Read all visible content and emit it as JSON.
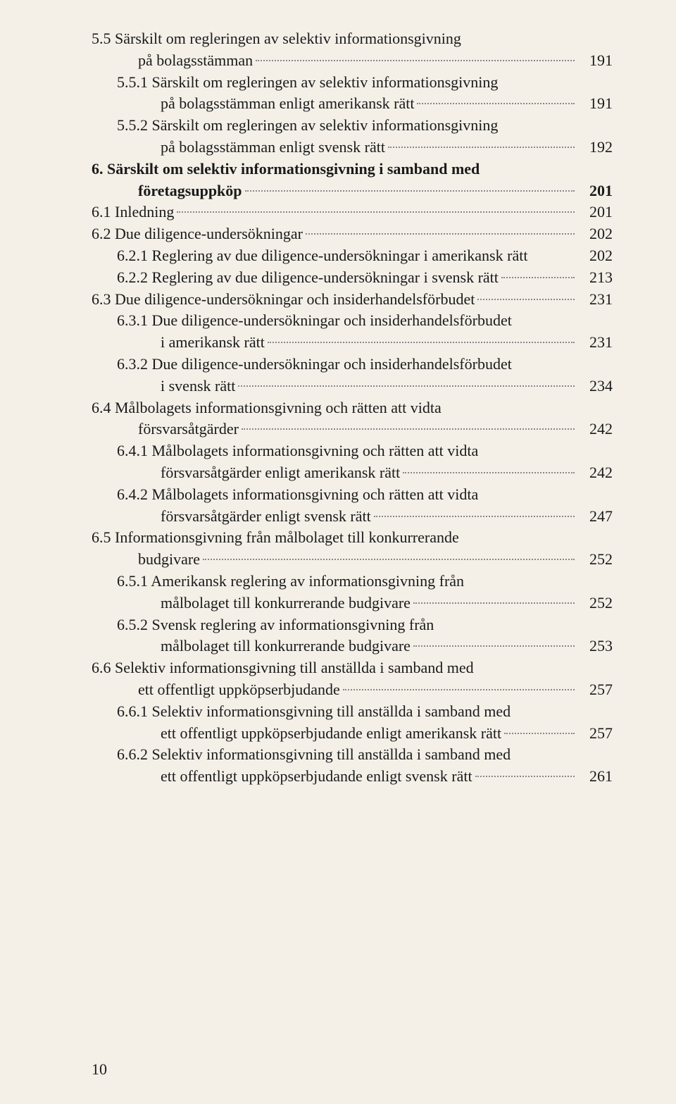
{
  "pageNumber": "10",
  "entries": [
    {
      "lines": [
        {
          "text": "5.5 Särskilt om regleringen av selektiv informationsgivning",
          "indent": "lvl-2",
          "hasLeader": false
        },
        {
          "text": "på bolagsstämman",
          "indent": "continuation",
          "hasLeader": true,
          "page": "191"
        }
      ]
    },
    {
      "lines": [
        {
          "text": "5.5.1 Särskilt om regleringen av selektiv informationsgivning",
          "indent": "lvl-3",
          "hasLeader": false
        },
        {
          "text": "på bolagsstämman enligt amerikansk rätt",
          "indent": "continuation-3",
          "hasLeader": true,
          "page": "191"
        }
      ]
    },
    {
      "lines": [
        {
          "text": "5.5.2 Särskilt om regleringen av selektiv informationsgivning",
          "indent": "lvl-3",
          "hasLeader": false
        },
        {
          "text": "på bolagsstämman enligt svensk rätt",
          "indent": "continuation-3",
          "hasLeader": true,
          "page": "192"
        }
      ]
    },
    {
      "lines": [
        {
          "text": "6. Särskilt om selektiv informationsgivning i samband med",
          "indent": "lvl-chapter",
          "chapter": true,
          "hasLeader": false
        },
        {
          "text": "företagsuppköp",
          "indent": "continuation",
          "chapter": true,
          "hasLeader": true,
          "page": "201"
        }
      ]
    },
    {
      "lines": [
        {
          "text": "6.1 Inledning",
          "indent": "lvl-2",
          "hasLeader": true,
          "page": "201"
        }
      ]
    },
    {
      "lines": [
        {
          "text": "6.2 Due diligence-undersökningar",
          "indent": "lvl-2",
          "hasLeader": true,
          "page": "202"
        }
      ]
    },
    {
      "lines": [
        {
          "text": "6.2.1 Reglering av due diligence-undersökningar i amerikansk rätt",
          "indent": "lvl-3",
          "hasLeader": false,
          "page": "202",
          "tight": true
        }
      ]
    },
    {
      "lines": [
        {
          "text": "6.2.2 Reglering av due diligence-undersökningar i svensk rätt",
          "indent": "lvl-3",
          "hasLeader": true,
          "page": "213"
        }
      ]
    },
    {
      "lines": [
        {
          "text": "6.3 Due diligence-undersökningar och insiderhandelsförbudet",
          "indent": "lvl-2",
          "hasLeader": true,
          "page": "231"
        }
      ]
    },
    {
      "lines": [
        {
          "text": "6.3.1 Due diligence-undersökningar och insiderhandelsförbudet",
          "indent": "lvl-3",
          "hasLeader": false
        },
        {
          "text": "i amerikansk rätt",
          "indent": "continuation-3",
          "hasLeader": true,
          "page": "231"
        }
      ]
    },
    {
      "lines": [
        {
          "text": "6.3.2 Due diligence-undersökningar och insiderhandelsförbudet",
          "indent": "lvl-3",
          "hasLeader": false
        },
        {
          "text": "i svensk rätt",
          "indent": "continuation-3",
          "hasLeader": true,
          "page": "234"
        }
      ]
    },
    {
      "lines": [
        {
          "text": "6.4 Målbolagets informationsgivning och rätten att vidta",
          "indent": "lvl-2",
          "hasLeader": false
        },
        {
          "text": "försvarsåtgärder",
          "indent": "continuation",
          "hasLeader": true,
          "page": "242"
        }
      ]
    },
    {
      "lines": [
        {
          "text": "6.4.1 Målbolagets informationsgivning och rätten att vidta",
          "indent": "lvl-3",
          "hasLeader": false
        },
        {
          "text": "försvarsåtgärder enligt amerikansk rätt",
          "indent": "continuation-3",
          "hasLeader": true,
          "page": "242"
        }
      ]
    },
    {
      "lines": [
        {
          "text": "6.4.2 Målbolagets informationsgivning och rätten att vidta",
          "indent": "lvl-3",
          "hasLeader": false
        },
        {
          "text": "försvarsåtgärder enligt svensk rätt",
          "indent": "continuation-3",
          "hasLeader": true,
          "page": "247"
        }
      ]
    },
    {
      "lines": [
        {
          "text": "6.5 Informationsgivning från målbolaget till konkurrerande",
          "indent": "lvl-2",
          "hasLeader": false
        },
        {
          "text": "budgivare",
          "indent": "continuation",
          "hasLeader": true,
          "page": "252"
        }
      ]
    },
    {
      "lines": [
        {
          "text": "6.5.1 Amerikansk reglering av informationsgivning från",
          "indent": "lvl-3",
          "hasLeader": false
        },
        {
          "text": "målbolaget till konkurrerande budgivare",
          "indent": "continuation-3",
          "hasLeader": true,
          "page": "252"
        }
      ]
    },
    {
      "lines": [
        {
          "text": "6.5.2 Svensk reglering av informationsgivning från",
          "indent": "lvl-3",
          "hasLeader": false
        },
        {
          "text": "målbolaget till konkurrerande budgivare",
          "indent": "continuation-3",
          "hasLeader": true,
          "page": "253"
        }
      ]
    },
    {
      "lines": [
        {
          "text": "6.6 Selektiv informationsgivning till anställda i samband med",
          "indent": "lvl-2",
          "hasLeader": false
        },
        {
          "text": "ett offentligt uppköpserbjudande",
          "indent": "continuation",
          "hasLeader": true,
          "page": "257"
        }
      ]
    },
    {
      "lines": [
        {
          "text": "6.6.1 Selektiv informationsgivning till anställda i samband med",
          "indent": "lvl-3",
          "hasLeader": false
        },
        {
          "text": "ett offentligt uppköpserbjudande enligt amerikansk rätt",
          "indent": "continuation-3",
          "hasLeader": true,
          "page": "257"
        }
      ]
    },
    {
      "lines": [
        {
          "text": "6.6.2 Selektiv informationsgivning till anställda i samband med",
          "indent": "lvl-3",
          "hasLeader": false
        },
        {
          "text": "ett offentligt uppköpserbjudande enligt svensk rätt",
          "indent": "continuation-3",
          "hasLeader": true,
          "page": "261"
        }
      ]
    }
  ]
}
